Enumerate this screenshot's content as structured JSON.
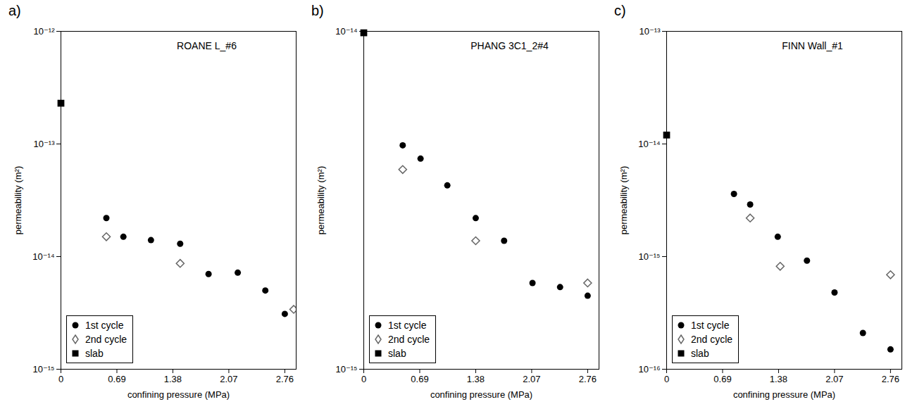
{
  "chart_data": [
    {
      "type": "scatter",
      "panel_label": "a)",
      "title": "ROANE L_#6",
      "x_label": "confining pressure (MPa)",
      "y_label": "permeability (m²)",
      "log": "y",
      "legend": "lower left",
      "xlim": [
        0,
        2.9
      ],
      "xticks": [
        0,
        0.69,
        1.38,
        2.07,
        2.76
      ],
      "ylim": [
        1e-15,
        1e-12
      ],
      "yticks": [
        {
          "value": 1e-15,
          "label": "10⁻¹⁵"
        },
        {
          "value": 1e-14,
          "label": "10⁻¹⁴"
        },
        {
          "value": 1e-13,
          "label": "10⁻¹³"
        },
        {
          "value": 1e-12,
          "label": "10⁻¹²"
        }
      ],
      "series": [
        {
          "name": "1st cycle",
          "color": "#000000",
          "marker": "circle",
          "x": [
            0.56,
            0.77,
            1.11,
            1.47,
            1.82,
            2.18,
            2.52,
            2.76
          ],
          "values": [
            2.2e-14,
            1.5e-14,
            1.4e-14,
            1.3e-14,
            7e-15,
            7.2e-15,
            5e-15,
            3.1e-15
          ]
        },
        {
          "name": "2nd cycle",
          "color": "#666666",
          "marker": "diamond",
          "x": [
            0.56,
            1.47,
            2.87
          ],
          "values": [
            1.5e-14,
            8.7e-15,
            3.4e-15
          ]
        },
        {
          "name": "slab",
          "color": "#000000",
          "marker": "square",
          "x": [
            0
          ],
          "values": [
            2.3e-13
          ]
        }
      ]
    },
    {
      "type": "scatter",
      "panel_label": "b)",
      "title": "PHANG 3C1_2#4",
      "x_label": "confining pressure (MPa)",
      "y_label": "permeability (m²)",
      "log": "y",
      "legend": "lower left",
      "xlim": [
        0,
        2.9
      ],
      "xticks": [
        0,
        0.69,
        1.38,
        2.07,
        2.76
      ],
      "ylim": [
        1e-15,
        1e-14
      ],
      "yticks": [
        {
          "value": 1e-15,
          "label": "10⁻¹⁵"
        },
        {
          "value": 1e-14,
          "label": "10⁻¹⁴"
        }
      ],
      "series": [
        {
          "name": "1st cycle",
          "color": "#000000",
          "marker": "circle",
          "x": [
            0.48,
            0.7,
            1.03,
            1.38,
            1.73,
            2.08,
            2.42,
            2.76
          ],
          "values": [
            4.6e-15,
            4.2e-15,
            3.5e-15,
            2.8e-15,
            2.4e-15,
            1.8e-15,
            1.75e-15,
            1.65e-15
          ]
        },
        {
          "name": "2nd cycle",
          "color": "#666666",
          "marker": "diamond",
          "x": [
            0.48,
            1.38,
            2.76
          ],
          "values": [
            3.9e-15,
            2.4e-15,
            1.8e-15
          ]
        },
        {
          "name": "slab",
          "color": "#000000",
          "marker": "square",
          "x": [
            0
          ],
          "values": [
            9.9e-15
          ]
        }
      ]
    },
    {
      "type": "scatter",
      "panel_label": "c)",
      "title": "FINN Wall_#1",
      "x_label": "confining pressure (MPa)",
      "y_label": "permeability (m²)",
      "log": "y",
      "legend": "lower left",
      "xlim": [
        0,
        2.9
      ],
      "xticks": [
        0,
        0.69,
        1.38,
        2.07,
        2.76
      ],
      "ylim": [
        1e-16,
        1e-13
      ],
      "yticks": [
        {
          "value": 1e-16,
          "label": "10⁻¹⁶"
        },
        {
          "value": 1e-15,
          "label": "10⁻¹⁵"
        },
        {
          "value": 1e-14,
          "label": "10⁻¹⁴"
        },
        {
          "value": 1e-13,
          "label": "10⁻¹³"
        }
      ],
      "series": [
        {
          "name": "1st cycle",
          "color": "#000000",
          "marker": "circle",
          "x": [
            0.83,
            1.03,
            1.37,
            1.73,
            2.07,
            2.42,
            2.76
          ],
          "values": [
            3.6e-15,
            2.9e-15,
            1.5e-15,
            9.2e-16,
            4.8e-16,
            2.1e-16,
            1.5e-16
          ]
        },
        {
          "name": "2nd cycle",
          "color": "#666666",
          "marker": "diamond",
          "x": [
            1.03,
            1.4,
            2.76
          ],
          "values": [
            2.2e-15,
            8.2e-16,
            6.9e-16
          ]
        },
        {
          "name": "slab",
          "color": "#000000",
          "marker": "square",
          "x": [
            0
          ],
          "values": [
            1.2e-14
          ]
        }
      ]
    }
  ]
}
